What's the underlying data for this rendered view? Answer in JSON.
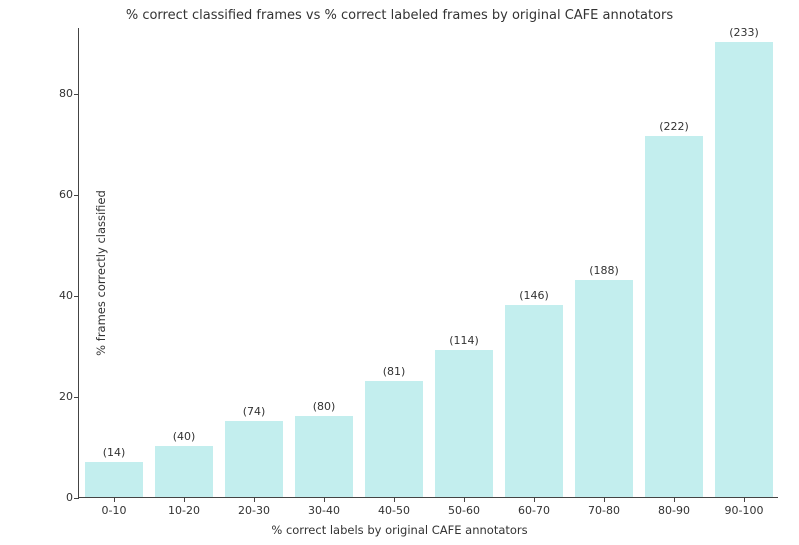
{
  "chart": {
    "type": "bar",
    "title": "% correct classified frames  vs  % correct labeled frames by original CAFE annotators",
    "title_fontsize": 13,
    "xlabel": "% correct labels by original CAFE annotators",
    "ylabel": "% frames correctly classified",
    "label_fontsize": 11.5,
    "tick_fontsize": 11,
    "background_color": "#ffffff",
    "axis_color": "#444444",
    "text_color": "#333333",
    "categories": [
      "0-10",
      "10-20",
      "20-30",
      "30-40",
      "40-50",
      "50-60",
      "60-70",
      "70-80",
      "80-90",
      "90-100"
    ],
    "values": [
      7,
      10,
      15,
      16,
      23,
      29,
      38,
      43,
      71.5,
      90
    ],
    "annotations": [
      "(14)",
      "(40)",
      "(74)",
      "(80)",
      "(81)",
      "(114)",
      "(146)",
      "(188)",
      "(222)",
      "(233)"
    ],
    "bar_color": "#c3eeee",
    "bar_width": 0.82,
    "ylim": [
      0,
      93
    ],
    "yticks": [
      0,
      20,
      40,
      60,
      80
    ],
    "annotation_offset": 3
  }
}
